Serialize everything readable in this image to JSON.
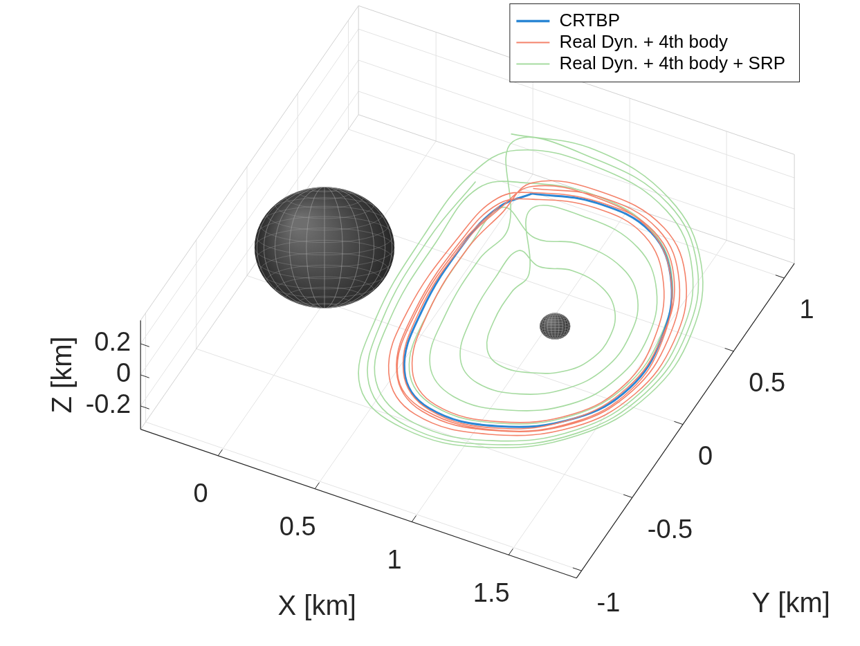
{
  "chart_data": {
    "type": "line",
    "legend": "top right",
    "grid": true,
    "x_label": "X [km]",
    "y_label": "Y [km]",
    "z_label": "Z [km]",
    "xlim": [
      -0.4,
      1.85
    ],
    "ylim": [
      -1.05,
      1.1
    ],
    "zlim": [
      -0.35,
      0.35
    ],
    "xticks": [
      0,
      0.5,
      1,
      1.5
    ],
    "yticks": [
      -1,
      -0.5,
      0,
      0.5,
      1
    ],
    "zticks": [
      -0.2,
      0,
      0.2
    ],
    "bodies": [
      {
        "x": 0,
        "y": 0,
        "z": 0,
        "radius": 0.32
      },
      {
        "x": 1.19,
        "y": 0,
        "z": 0,
        "radius": 0.07
      }
    ],
    "series": [
      {
        "name": "CRTBP",
        "color": "#2b86d4",
        "x": [
          0.71,
          1.0,
          1.32,
          1.55,
          1.67,
          1.68,
          1.54,
          1.24,
          0.9,
          0.69,
          0.59,
          0.57,
          0.61,
          0.71
        ],
        "y": [
          0.69,
          0.76,
          0.7,
          0.46,
          0.13,
          -0.2,
          -0.47,
          -0.66,
          -0.69,
          -0.53,
          -0.17,
          0.29,
          0.55,
          0.69
        ],
        "z": [
          0,
          0,
          0,
          0,
          0,
          0,
          0,
          0,
          0,
          0,
          0,
          0,
          0,
          0
        ]
      },
      {
        "name": "Real Dyn. + 4th body",
        "color": "#f4826a",
        "x": [
          0.7,
          1.0,
          1.34,
          1.58,
          1.7,
          1.7,
          1.55,
          1.24,
          0.88,
          0.66,
          0.56,
          0.55,
          0.6,
          0.73,
          1.01,
          1.3,
          1.52,
          1.64,
          1.65,
          1.52,
          1.24,
          0.92,
          0.72,
          0.62,
          0.6,
          0.64,
          0.68,
          0.99,
          1.36,
          1.61,
          1.73,
          1.72,
          1.56,
          1.23,
          0.86,
          0.63,
          0.53,
          0.53,
          0.58,
          0.72,
          1.02,
          1.33,
          1.56,
          1.67,
          1.67,
          1.53,
          1.25,
          0.91,
          0.69,
          0.58,
          0.57,
          0.62,
          0.69,
          0.98,
          1.31,
          1.55,
          1.68,
          1.69,
          1.55,
          1.26,
          0.89,
          0.67,
          0.57,
          0.56,
          0.61
        ],
        "y": [
          0.72,
          0.8,
          0.73,
          0.48,
          0.14,
          -0.21,
          -0.5,
          -0.69,
          -0.72,
          -0.55,
          -0.18,
          0.3,
          0.57,
          0.66,
          0.73,
          0.67,
          0.44,
          0.12,
          -0.19,
          -0.45,
          -0.63,
          -0.66,
          -0.51,
          -0.16,
          0.27,
          0.52,
          0.75,
          0.83,
          0.75,
          0.49,
          0.14,
          -0.22,
          -0.52,
          -0.72,
          -0.75,
          -0.57,
          -0.19,
          0.32,
          0.6,
          0.7,
          0.77,
          0.71,
          0.47,
          0.13,
          -0.2,
          -0.48,
          -0.67,
          -0.7,
          -0.54,
          -0.17,
          0.29,
          0.55,
          0.73,
          0.79,
          0.71,
          0.46,
          0.12,
          -0.21,
          -0.49,
          -0.68,
          -0.71,
          -0.56,
          -0.19,
          0.29,
          0.56
        ],
        "z": [
          0,
          0,
          0,
          0,
          0,
          0,
          0,
          0,
          0,
          0,
          0,
          0,
          0,
          0,
          0,
          0,
          0,
          0,
          0,
          0,
          0,
          0,
          0,
          0,
          0,
          0,
          0,
          0,
          0,
          0,
          0,
          0,
          0,
          0,
          0,
          0,
          0,
          0,
          0,
          0,
          0,
          0,
          0,
          0,
          0,
          0,
          0,
          0,
          0,
          0,
          0,
          0,
          0,
          0,
          0,
          0,
          0,
          0,
          0,
          0,
          0,
          0,
          0,
          0,
          0
        ]
      },
      {
        "name": "Real Dyn. + 4th body + SRP",
        "color": "#a6dba0",
        "x": [
          0.45,
          0.85,
          1.3,
          1.62,
          1.78,
          1.78,
          1.6,
          1.25,
          0.85,
          0.55,
          0.42,
          0.38,
          0.4,
          0.52,
          0.9,
          1.32,
          1.6,
          1.74,
          1.74,
          1.58,
          1.26,
          0.88,
          0.6,
          0.48,
          0.45,
          0.47,
          0.66,
          0.98,
          1.32,
          1.55,
          1.66,
          1.66,
          1.52,
          1.24,
          0.92,
          0.71,
          0.62,
          0.6,
          0.63,
          0.85,
          1.05,
          1.3,
          1.46,
          1.53,
          1.52,
          1.42,
          1.24,
          1.03,
          0.89,
          0.82,
          0.8,
          0.82,
          0.95,
          1.1,
          1.28,
          1.4,
          1.45,
          1.44,
          1.37,
          1.23,
          1.07,
          0.97,
          0.92,
          0.91,
          0.93,
          0.75,
          1.02,
          1.31,
          1.51,
          1.61,
          1.6,
          1.48,
          1.24,
          0.97,
          0.78,
          0.7,
          0.68,
          0.71,
          0.48,
          0.88,
          1.31,
          1.61,
          1.76,
          1.76,
          1.59,
          1.25,
          0.86,
          0.58,
          0.45,
          0.41,
          0.44
        ],
        "y": [
          0.98,
          1.05,
          0.92,
          0.62,
          0.22,
          -0.2,
          -0.56,
          -0.8,
          -0.85,
          -0.7,
          -0.3,
          0.25,
          0.68,
          0.9,
          0.96,
          0.85,
          0.57,
          0.19,
          -0.2,
          -0.53,
          -0.75,
          -0.8,
          -0.64,
          -0.27,
          0.24,
          0.62,
          0.74,
          0.8,
          0.71,
          0.47,
          0.14,
          -0.19,
          -0.46,
          -0.64,
          -0.67,
          -0.52,
          -0.17,
          0.29,
          0.56,
          0.45,
          0.5,
          0.45,
          0.3,
          0.08,
          -0.14,
          -0.32,
          -0.44,
          -0.46,
          -0.36,
          -0.13,
          0.16,
          0.35,
          0.3,
          0.34,
          0.3,
          0.19,
          0.04,
          -0.1,
          -0.22,
          -0.3,
          -0.32,
          -0.25,
          -0.09,
          0.11,
          0.24,
          0.6,
          0.66,
          0.59,
          0.39,
          0.11,
          -0.17,
          -0.4,
          -0.55,
          -0.58,
          -0.45,
          -0.15,
          0.23,
          0.46,
          0.94,
          1.0,
          0.89,
          0.6,
          0.21,
          -0.2,
          -0.55,
          -0.78,
          -0.83,
          -0.67,
          -0.29,
          0.25,
          0.65
        ],
        "z": [
          0,
          0,
          0,
          0,
          0,
          0,
          0,
          0,
          0,
          0,
          0,
          0,
          0,
          0,
          0,
          0,
          0,
          0,
          0,
          0,
          0,
          0,
          0,
          0,
          0,
          0,
          0,
          0,
          0,
          0,
          0,
          0,
          0,
          0,
          0,
          0,
          0,
          0,
          0,
          0,
          0,
          0,
          0,
          0,
          0,
          0,
          0,
          0,
          0,
          0,
          0,
          0,
          0,
          0,
          0,
          0,
          0,
          0,
          0,
          0,
          0,
          0,
          0,
          0,
          0,
          0,
          0,
          0,
          0,
          0,
          0,
          0,
          0,
          0,
          0,
          0,
          0,
          0,
          0,
          0,
          0,
          0,
          0,
          0,
          0,
          0,
          0,
          0,
          0,
          0,
          0
        ]
      }
    ]
  }
}
